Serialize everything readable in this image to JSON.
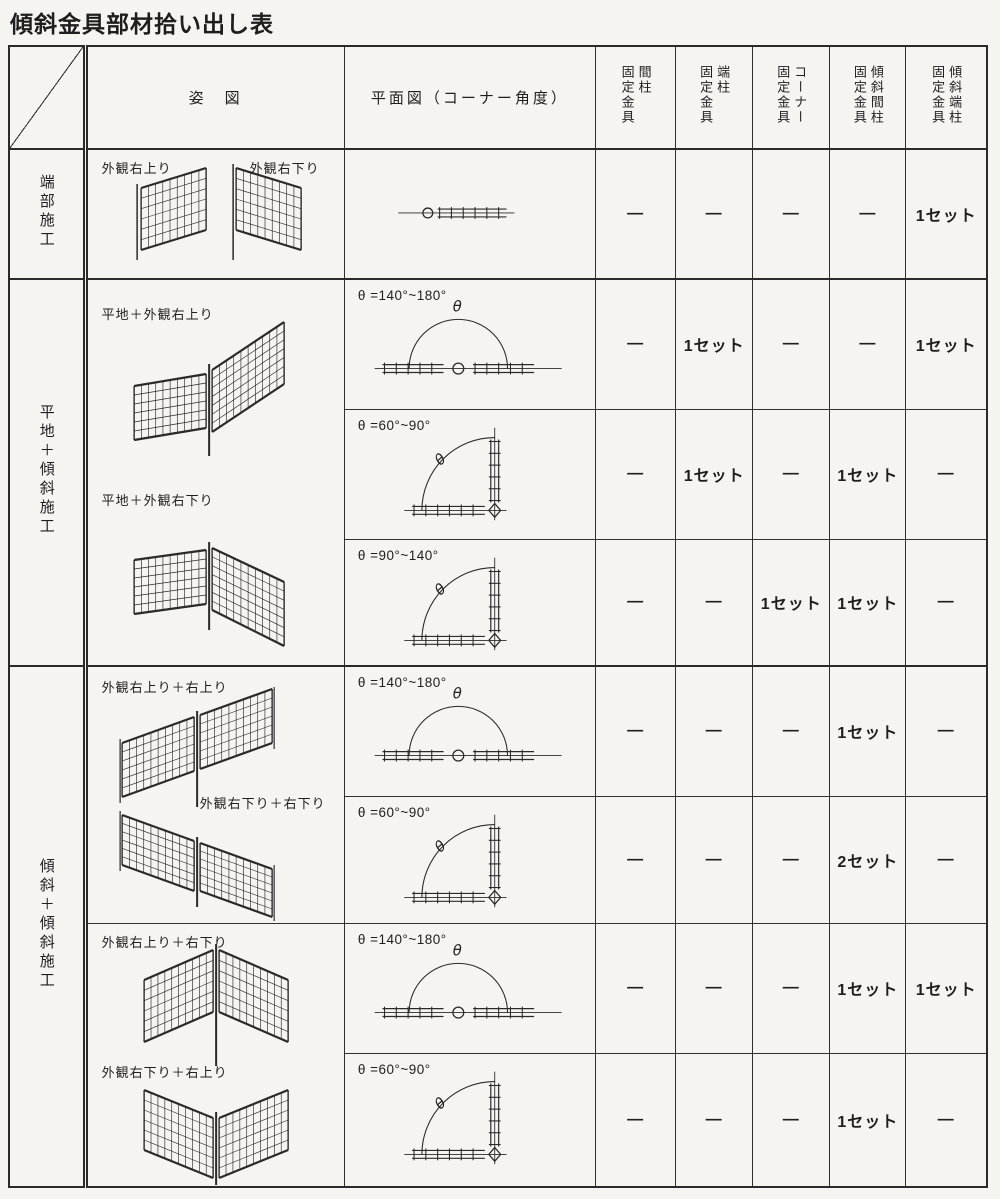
{
  "title": "傾斜金具部材拾い出し表",
  "plan_theta_glyph": "θ",
  "table": {
    "headers": {
      "appearance": "姿　図",
      "plan": "平面図（コーナー角度）",
      "parts": [
        {
          "line1": "間柱",
          "line2": "固定金具"
        },
        {
          "line1": "端柱",
          "line2": "固定金具"
        },
        {
          "line1": "コーナー",
          "line2": "固定金具"
        },
        {
          "line1": "傾斜間柱",
          "line2": "固定金具"
        },
        {
          "line1": "傾斜端柱",
          "line2": "固定金具"
        }
      ]
    },
    "sections": [
      {
        "group": "端部施工",
        "appearance_labels": [
          "外観右上り",
          "外観右下り"
        ],
        "rows": [
          {
            "plan_type": "straight",
            "theta": "",
            "values": [
              "—",
              "—",
              "—",
              "—",
              "1セット"
            ]
          }
        ]
      },
      {
        "group": "平地＋傾斜施工",
        "appearance_labels": [
          "平地＋外観右上り",
          "平地＋外観右下り"
        ],
        "rows": [
          {
            "plan_type": "semi",
            "theta": "θ =140°~180°",
            "values": [
              "—",
              "1セット",
              "—",
              "—",
              "1セット"
            ]
          },
          {
            "plan_type": "corner",
            "theta": "θ =60°~90°",
            "values": [
              "—",
              "1セット",
              "—",
              "1セット",
              "—"
            ]
          },
          {
            "plan_type": "corner",
            "theta": "θ =90°~140°",
            "values": [
              "—",
              "—",
              "1セット",
              "1セット",
              "—"
            ]
          }
        ]
      },
      {
        "group": "傾斜＋傾斜施工",
        "appearance_top_labels": [
          "外観右上り＋右上り",
          "外観右下り＋右下り"
        ],
        "appearance_bottom_labels": [
          "外観右上り＋右下り",
          "外観右下り＋右上り"
        ],
        "rows": [
          {
            "plan_type": "semi",
            "theta": "θ =140°~180°",
            "values": [
              "—",
              "—",
              "—",
              "1セット",
              "—"
            ]
          },
          {
            "plan_type": "corner",
            "theta": "θ =60°~90°",
            "values": [
              "—",
              "—",
              "—",
              "2セット",
              "—"
            ]
          },
          {
            "plan_type": "semi",
            "theta": "θ =140°~180°",
            "values": [
              "—",
              "—",
              "—",
              "1セット",
              "1セット"
            ]
          },
          {
            "plan_type": "corner",
            "theta": "θ =60°~90°",
            "values": [
              "—",
              "—",
              "—",
              "1セット",
              "—"
            ]
          }
        ]
      }
    ]
  }
}
